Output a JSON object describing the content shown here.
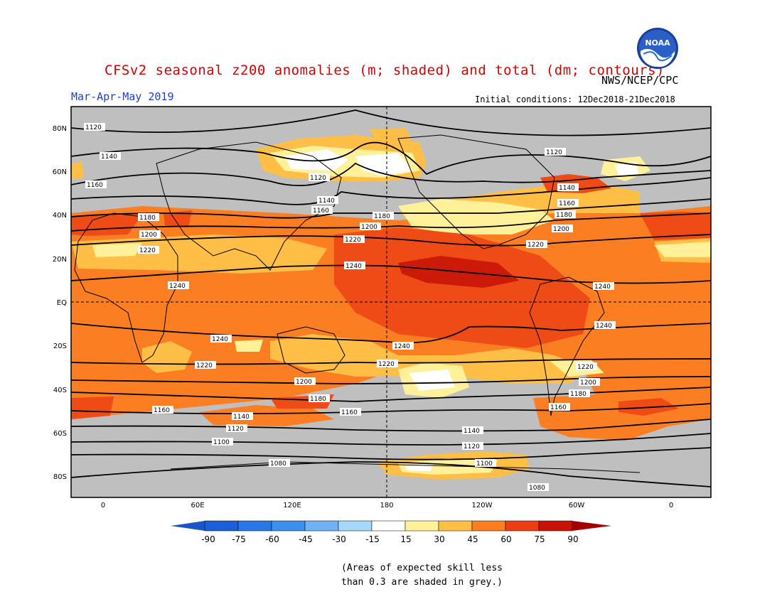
{
  "header": {
    "title": "CFSv2 seasonal z200 anomalies (m; shaded) and total (dm; contours)",
    "org": "NWS/NCEP/CPC",
    "period": "Mar-Apr-May 2019",
    "initial_conditions": "Initial conditions: 12Dec2018-21Dec2018",
    "logo_text": "NOAA"
  },
  "map": {
    "lat_labels": [
      "80N",
      "60N",
      "40N",
      "20N",
      "EQ",
      "20S",
      "40S",
      "60S",
      "80S"
    ],
    "lon_labels": [
      "0",
      "60E",
      "120E",
      "180",
      "120W",
      "60W",
      "0"
    ],
    "contours": [
      {
        "value": "1240",
        "labels": [
          "1240",
          "1240",
          "1240"
        ]
      },
      {
        "value": "1240",
        "labels": [
          "1240",
          "1240",
          "1240"
        ]
      },
      {
        "value": "1220",
        "labels": [
          "1220",
          "1220",
          "1220"
        ]
      },
      {
        "value": "1220",
        "labels": [
          "1220",
          "1220",
          "1220"
        ]
      },
      {
        "value": "1200",
        "labels": [
          "1200",
          "1200",
          "1200"
        ]
      },
      {
        "value": "1200",
        "labels": [
          "1200",
          "1200"
        ]
      },
      {
        "value": "1180",
        "labels": [
          "1180",
          "1180",
          "1180"
        ]
      },
      {
        "value": "1180",
        "labels": [
          "1180",
          "1180"
        ]
      },
      {
        "value": "1160",
        "labels": [
          "1160",
          "1160",
          "1160"
        ]
      },
      {
        "value": "1160",
        "labels": [
          "1160",
          "1160",
          "1160"
        ]
      },
      {
        "value": "1140",
        "labels": [
          "1140",
          "1140",
          "1140"
        ]
      },
      {
        "value": "1140",
        "labels": [
          "1140",
          "1140"
        ]
      },
      {
        "value": "1120",
        "labels": [
          "1120",
          "1120",
          "1120"
        ]
      },
      {
        "value": "1120",
        "labels": [
          "1120",
          "1120"
        ]
      },
      {
        "value": "1100",
        "labels": [
          "1100",
          "1100"
        ]
      },
      {
        "value": "1080",
        "labels": [
          "1080",
          "1080"
        ]
      }
    ]
  },
  "colorbar": {
    "ticks": [
      "-90",
      "-75",
      "-60",
      "-45",
      "-30",
      "-15",
      "15",
      "30",
      "45",
      "60",
      "75",
      "90"
    ],
    "colors": [
      "#1c5fd6",
      "#2a78e4",
      "#3d8fee",
      "#6fb1f4",
      "#a6d8f8",
      "#d3f5f7",
      "#ffffff",
      "#fff09a",
      "#ffbe45",
      "#fb7e22",
      "#ed3d12",
      "#c81208",
      "#a80000"
    ],
    "low_end_color": "#1a55c8",
    "high_end_color": "#a30000"
  },
  "note": {
    "line1": "(Areas of expected skill less",
    "line2": "than 0.3 are shaded in grey.)"
  },
  "colors": {
    "grey": "#bfbfbf",
    "orange": "#fb7e22",
    "dark_orange": "#ef4b16",
    "red": "#cc1a0a",
    "light_orange": "#ffbe45",
    "yellow": "#fff09a"
  }
}
